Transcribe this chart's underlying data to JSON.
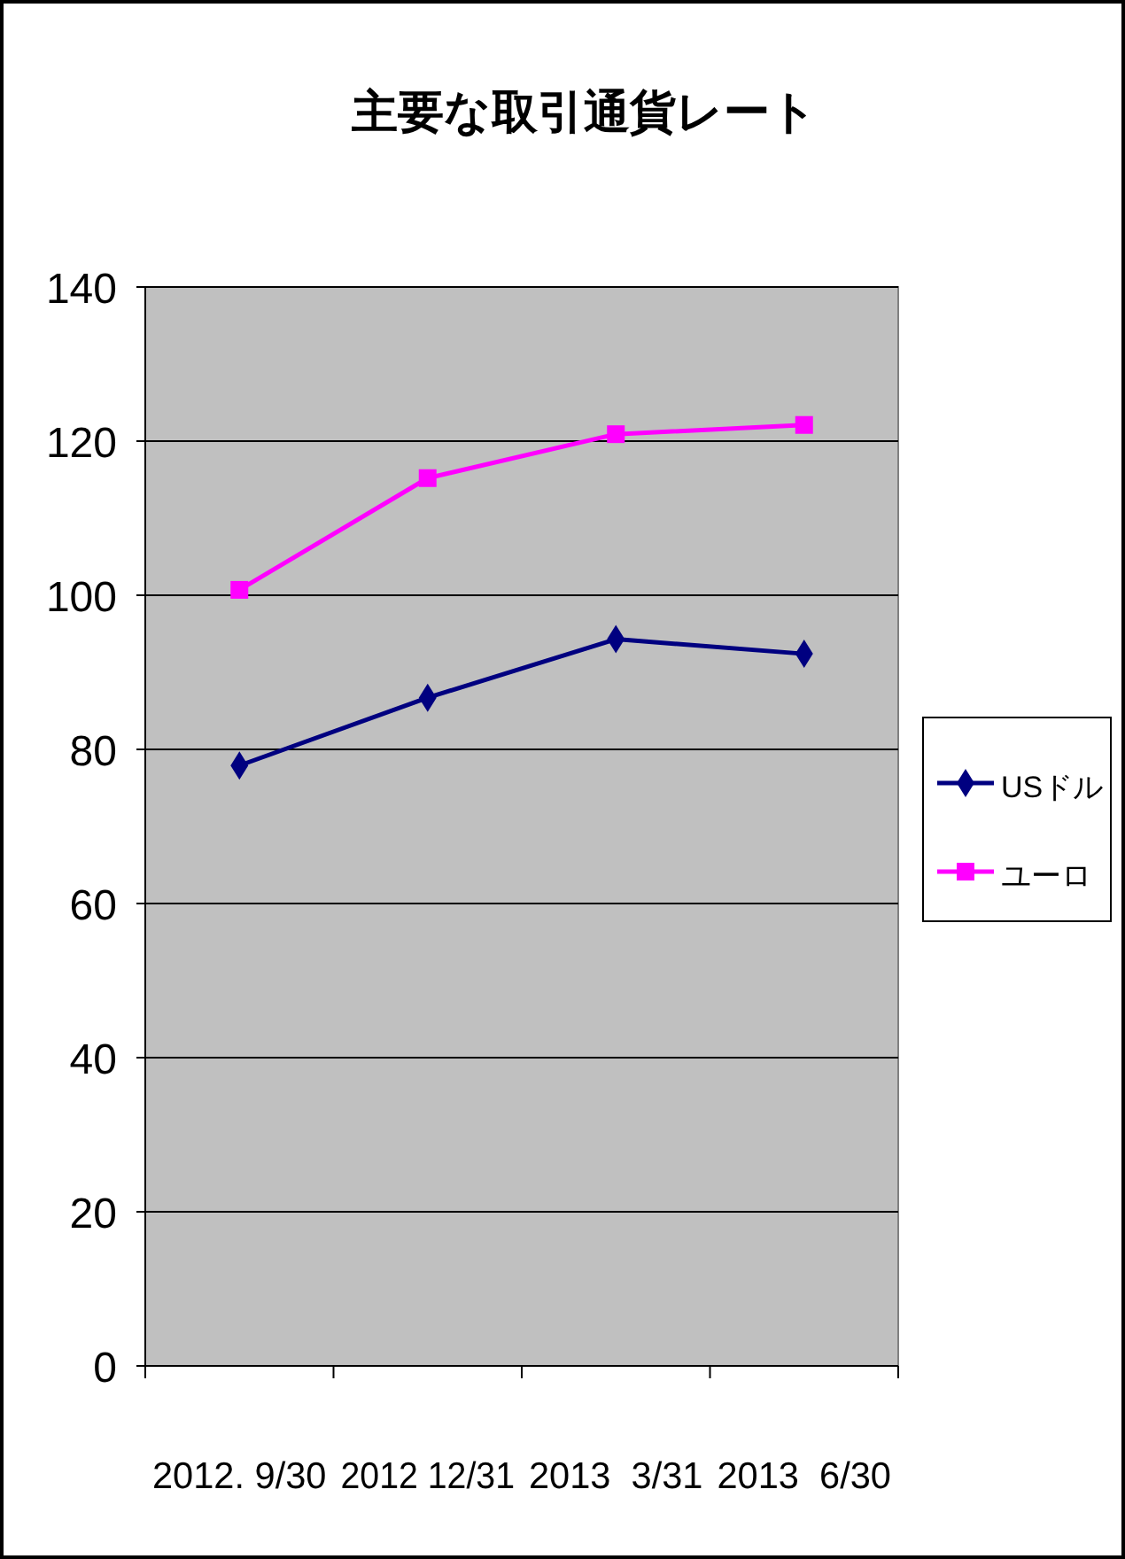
{
  "chart_data": {
    "type": "line",
    "title": "主要な取引通貨レート",
    "categories": [
      "2012. 9/30",
      "2012 12/31",
      "2013  3/31",
      "2013  6/30"
    ],
    "series": [
      {
        "name": "USドル",
        "color": "#000080",
        "marker": "diamond",
        "values": [
          77.9,
          86.7,
          94.3,
          92.4
        ]
      },
      {
        "name": "ユーロ",
        "color": "#ff00ff",
        "marker": "square",
        "values": [
          100.7,
          115.2,
          120.9,
          122.1
        ]
      }
    ],
    "ylim": [
      0,
      140
    ],
    "yticks": [
      0,
      20,
      40,
      60,
      80,
      100,
      120,
      140
    ],
    "grid": "y",
    "legend": "right",
    "line_style": "solid"
  }
}
